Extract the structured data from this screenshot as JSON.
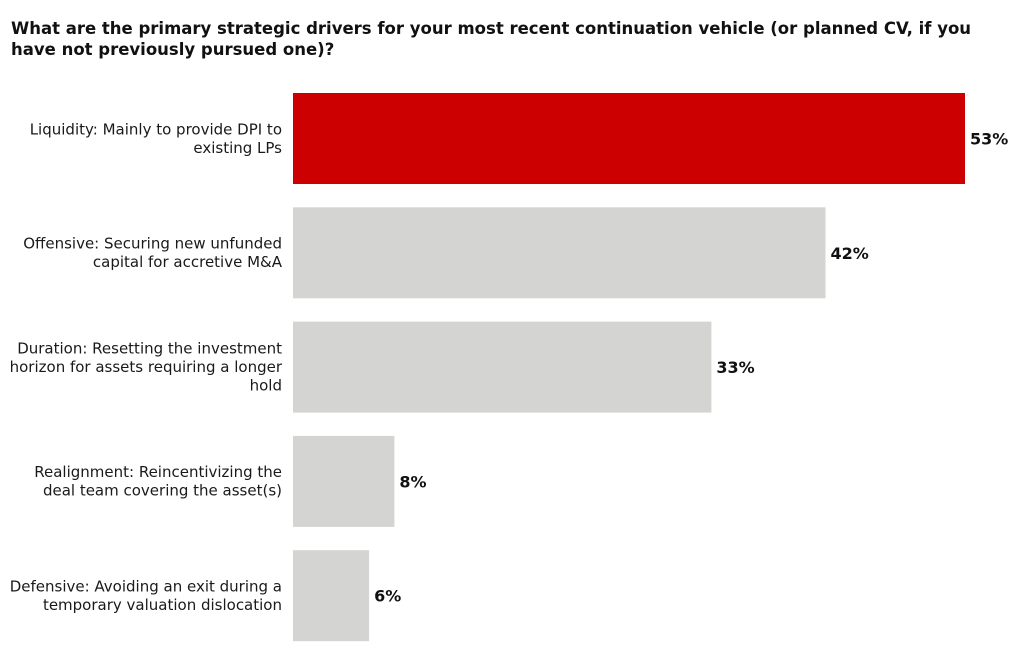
{
  "chart_data": {
    "type": "bar",
    "orientation": "horizontal",
    "title": "What are the primary strategic drivers for your most recent continuation vehicle (or planned CV, if you have not previously pursued one)?",
    "categories": [
      [
        "Liquidity: Mainly to provide DPI to",
        "existing LPs"
      ],
      [
        "Offensive: Securing new unfunded",
        "capital for accretive M&A"
      ],
      [
        "Duration: Resetting the investment",
        "horizon for assets requiring a longer",
        "hold"
      ],
      [
        "Realignment: Reincentivizing the",
        "deal team covering the asset(s)"
      ],
      [
        "Defensive: Avoiding an exit during a",
        "temporary valuation dislocation"
      ]
    ],
    "values": [
      53,
      42,
      33,
      8,
      6
    ],
    "value_labels": [
      "53%",
      "42%",
      "33%",
      "8%",
      "6%"
    ],
    "unit": "%",
    "xlim": [
      0,
      53
    ],
    "grid": false,
    "legend": "none",
    "highlight_index": 0,
    "colors": {
      "highlight": "#cc0000",
      "default": "#d4d4d2"
    }
  }
}
